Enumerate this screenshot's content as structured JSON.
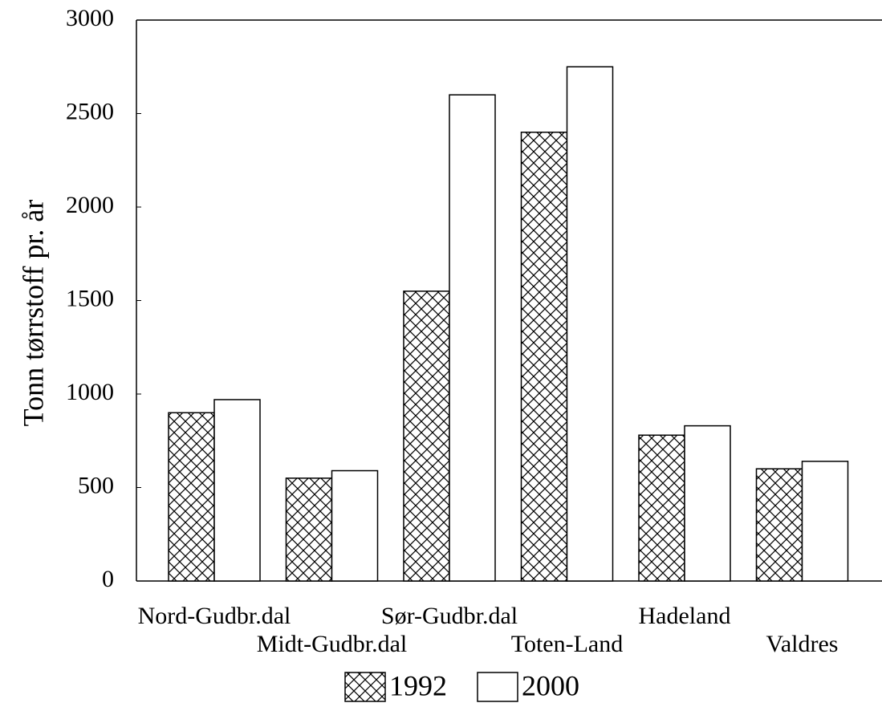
{
  "chart_data": {
    "type": "bar",
    "y_label": "Tonn tørrstoff pr. år",
    "categories": [
      "Nord-Gudbr.dal",
      "Midt-Gudbr.dal",
      "Sør-Gudbr.dal",
      "Toten-Land",
      "Hadeland",
      "Valdres"
    ],
    "series": [
      {
        "name": "1992",
        "color": "#000000",
        "values": [
          900,
          550,
          1550,
          2400,
          780,
          600
        ]
      },
      {
        "name": "2000",
        "color": "#ffffff",
        "values": [
          970,
          590,
          2600,
          2750,
          830,
          640
        ]
      }
    ],
    "ylim": [
      0,
      3000
    ],
    "yticks": [
      0,
      500,
      1000,
      1500,
      2000,
      2500,
      3000
    ],
    "grid": false
  }
}
